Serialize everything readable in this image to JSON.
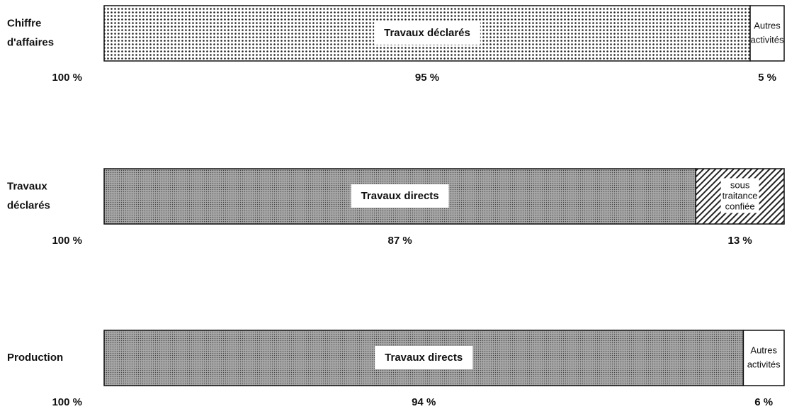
{
  "chart_data": [
    {
      "type": "bar",
      "orientation": "horizontal",
      "stacked": true,
      "label": [
        "Chiffre",
        "d'affaires"
      ],
      "total": 100,
      "total_label": "100 %",
      "xlim": [
        0,
        100
      ],
      "series": [
        {
          "name": [
            "Travaux déclarés"
          ],
          "pattern": "dots",
          "values": [
            95
          ],
          "value_labels": [
            "95 %"
          ]
        },
        {
          "name": [
            "Autres",
            "activités"
          ],
          "pattern": "none",
          "values": [
            5
          ],
          "value_labels": [
            "5 %"
          ]
        }
      ]
    },
    {
      "type": "bar",
      "orientation": "horizontal",
      "stacked": true,
      "label": [
        "Travaux",
        "déclarés"
      ],
      "total": 100,
      "total_label": "100 %",
      "xlim": [
        0,
        100
      ],
      "series": [
        {
          "name": [
            "Travaux directs"
          ],
          "pattern": "stipple",
          "values": [
            87
          ],
          "value_labels": [
            "87 %"
          ]
        },
        {
          "name": [
            "sous",
            "traitance",
            "confiée"
          ],
          "pattern": "hatch",
          "values": [
            13
          ],
          "value_labels": [
            "13 %"
          ]
        }
      ]
    },
    {
      "type": "bar",
      "orientation": "horizontal",
      "stacked": true,
      "label": [
        "Production"
      ],
      "total": 100,
      "total_label": "100 %",
      "xlim": [
        0,
        100
      ],
      "series": [
        {
          "name": [
            "Travaux directs"
          ],
          "pattern": "stipple",
          "values": [
            94
          ],
          "value_labels": [
            "94 %"
          ]
        },
        {
          "name": [
            "Autres",
            "activités"
          ],
          "pattern": "none",
          "values": [
            6
          ],
          "value_labels": [
            "6 %"
          ]
        }
      ]
    }
  ]
}
